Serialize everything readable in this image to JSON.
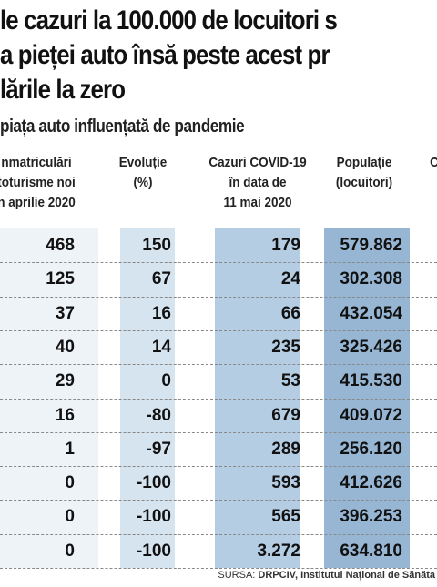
{
  "header": {
    "title_lines": [
      "le cazuri la 100.000 de locuitori s",
      "a pieței auto însă peste acest pr",
      "lările la zero"
    ],
    "subtitle": "piața auto influențată de pandemie"
  },
  "table": {
    "columns": [
      [
        "nmatriculări",
        "toturisme noi",
        "n aprilie 2020"
      ],
      [
        "Evoluție",
        "(%)"
      ],
      [
        "Cazuri COVID-19",
        "în data de",
        "11 mai 2020"
      ],
      [
        "Populație",
        "(locuitori)"
      ],
      [
        "C"
      ]
    ],
    "rows": [
      [
        "468",
        "150",
        "179",
        "579.862"
      ],
      [
        "125",
        "67",
        "24",
        "302.308"
      ],
      [
        "37",
        "16",
        "66",
        "432.054"
      ],
      [
        "40",
        "14",
        "235",
        "325.426"
      ],
      [
        "29",
        "0",
        "53",
        "415.530"
      ],
      [
        "16",
        "-80",
        "679",
        "409.072"
      ],
      [
        "1",
        "-97",
        "289",
        "256.120"
      ],
      [
        "0",
        "-100",
        "593",
        "412.626"
      ],
      [
        "0",
        "-100",
        "565",
        "396.253"
      ],
      [
        "0",
        "-100",
        "3.272",
        "634.810"
      ]
    ]
  },
  "footer": {
    "source_label": "SURSA:",
    "source": "DRPCIV, Institutul Național de Sănăta"
  }
}
